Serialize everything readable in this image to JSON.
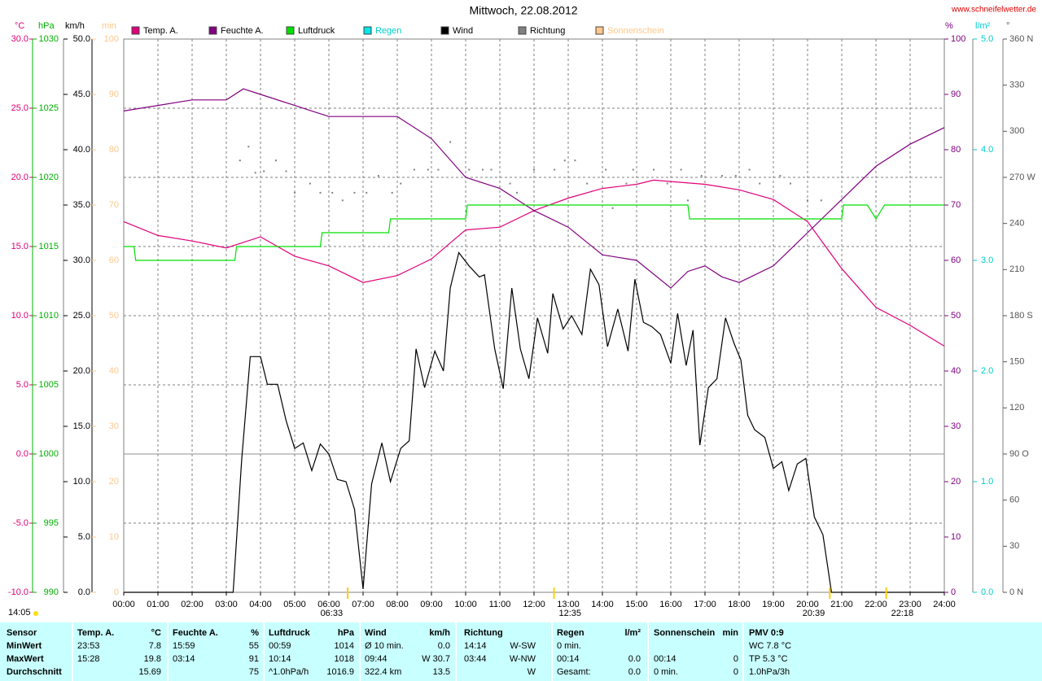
{
  "chart_data": {
    "type": "line",
    "title": "Mittwoch, 22.08.2012",
    "source": "www.schneifelwetter.de",
    "footer_time": "14:05",
    "annotations": [
      "06:33",
      "12:35",
      "20:39",
      "22:18"
    ],
    "grid": true,
    "xlim": [
      0,
      24
    ],
    "xticks": [
      {
        "value": 0,
        "label": "00:00"
      },
      {
        "value": 1,
        "label": "01:00"
      },
      {
        "value": 2,
        "label": "02:00"
      },
      {
        "value": 3,
        "label": "03:00"
      },
      {
        "value": 4,
        "label": "04:00"
      },
      {
        "value": 5,
        "label": "05:00"
      },
      {
        "value": 6,
        "label": "06:00"
      },
      {
        "value": 7,
        "label": "07:00"
      },
      {
        "value": 8,
        "label": "08:00"
      },
      {
        "value": 9,
        "label": "09:00"
      },
      {
        "value": 10,
        "label": "10:00"
      },
      {
        "value": 11,
        "label": "11:00"
      },
      {
        "value": 12,
        "label": "12:00"
      },
      {
        "value": 13,
        "label": "13:00"
      },
      {
        "value": 14,
        "label": "14:00"
      },
      {
        "value": 15,
        "label": "15:00"
      },
      {
        "value": 16,
        "label": "16:00"
      },
      {
        "value": 17,
        "label": "17:00"
      },
      {
        "value": 18,
        "label": "18:00"
      },
      {
        "value": 19,
        "label": "19:00"
      },
      {
        "value": 20,
        "label": "20:00"
      },
      {
        "value": 21,
        "label": "21:00"
      },
      {
        "value": 22,
        "label": "22:00"
      },
      {
        "value": 23,
        "label": "23:00"
      },
      {
        "value": 24,
        "label": "24:00"
      }
    ],
    "y_axes": {
      "temp": {
        "label": "°C",
        "color": "#e0007a",
        "ylim": [
          -10,
          30
        ],
        "yticks": [
          {
            "value": -10,
            "label": "-10.0"
          },
          {
            "value": -5,
            "label": "-5.0"
          },
          {
            "value": 0,
            "label": "0.0"
          },
          {
            "value": 5,
            "label": "5.0"
          },
          {
            "value": 10,
            "label": "10.0"
          },
          {
            "value": 15,
            "label": "15.0"
          },
          {
            "value": 20,
            "label": "20.0"
          },
          {
            "value": 25,
            "label": "25.0"
          },
          {
            "value": 30,
            "label": "30.0"
          }
        ]
      },
      "pressure": {
        "label": "hPa",
        "color": "#00b000",
        "ylim": [
          990,
          1030
        ],
        "yticks": [
          990,
          995,
          1000,
          1005,
          1010,
          1015,
          1020,
          1025,
          1030
        ]
      },
      "wind": {
        "label": "km/h",
        "color": "#000000",
        "ylim": [
          0,
          50
        ],
        "yticks": [
          {
            "value": 0,
            "label": "0.0"
          },
          {
            "value": 5,
            "label": "5.0"
          },
          {
            "value": 10,
            "label": "10.0"
          },
          {
            "value": 15,
            "label": "15.0"
          },
          {
            "value": 20,
            "label": "20.0"
          },
          {
            "value": 25,
            "label": "25.0"
          },
          {
            "value": 30,
            "label": "30.0"
          },
          {
            "value": 35,
            "label": "35.0"
          },
          {
            "value": 40,
            "label": "40.0"
          },
          {
            "value": 45,
            "label": "45.0"
          },
          {
            "value": 50,
            "label": "50.0"
          }
        ]
      },
      "sun": {
        "label": "min",
        "color": "#ffc88a",
        "ylim": [
          0,
          100
        ],
        "yticks": [
          0,
          10,
          20,
          30,
          40,
          50,
          60,
          70,
          80,
          90,
          100
        ]
      },
      "humidity": {
        "label": "%",
        "color": "#800080",
        "ylim": [
          0,
          100
        ],
        "yticks": [
          0,
          10,
          20,
          30,
          40,
          50,
          60,
          70,
          80,
          90,
          100
        ]
      },
      "rain": {
        "label": "l/m²",
        "color": "#00cccc",
        "ylim": [
          0,
          5
        ],
        "yticks": [
          {
            "value": 0,
            "label": "0.0"
          },
          {
            "value": 1,
            "label": "1.0"
          },
          {
            "value": 2,
            "label": "2.0"
          },
          {
            "value": 3,
            "label": "3.0"
          },
          {
            "value": 4,
            "label": "4.0"
          },
          {
            "value": 5,
            "label": "5.0"
          }
        ]
      },
      "direction": {
        "label": "°",
        "color": "#555555",
        "ylim": [
          0,
          360
        ],
        "yticks": [
          {
            "value": 0,
            "label": "0 N"
          },
          30,
          60,
          {
            "value": 90,
            "label": "90 O"
          },
          120,
          150,
          {
            "value": 180,
            "label": "180 S"
          },
          210,
          240,
          {
            "value": 270,
            "label": "270 W"
          },
          300,
          330,
          {
            "value": 360,
            "label": "360 N"
          }
        ]
      }
    },
    "series": [
      {
        "name": "Temp. A.",
        "color": "#e0007a",
        "axis": "temp",
        "x": [
          0,
          1,
          2,
          3,
          4,
          5,
          6,
          7,
          8,
          9,
          10,
          11,
          12,
          13,
          14,
          15,
          15.5,
          16,
          17,
          18,
          19,
          20,
          21,
          22,
          23,
          24
        ],
        "values": [
          16.8,
          15.8,
          15.4,
          14.9,
          15.7,
          14.3,
          13.6,
          12.4,
          12.9,
          14.1,
          16.2,
          16.4,
          17.6,
          18.5,
          19.2,
          19.5,
          19.8,
          19.7,
          19.5,
          19.1,
          18.4,
          16.8,
          13.4,
          10.6,
          9.3,
          7.8
        ]
      },
      {
        "name": "Feuchte A.",
        "color": "#800080",
        "axis": "humidity",
        "x": [
          0,
          1,
          2,
          3,
          3.5,
          4,
          5,
          6,
          7,
          8,
          8.5,
          9,
          10,
          11,
          12,
          13,
          14,
          15,
          16,
          16.5,
          17,
          17.5,
          18,
          19,
          19.5,
          20,
          21,
          22,
          23,
          24
        ],
        "values": [
          87,
          88,
          89,
          89,
          91,
          90,
          88,
          86,
          86,
          86,
          84,
          82,
          75,
          73,
          69,
          66,
          61,
          60,
          55,
          58,
          59,
          57,
          56,
          59,
          62,
          65,
          71,
          77,
          81,
          84
        ]
      },
      {
        "name": "Luftdruck",
        "color": "#00e000",
        "axis": "pressure",
        "x": [
          0,
          0.3,
          0.35,
          3.25,
          3.3,
          5.75,
          5.8,
          7.75,
          7.8,
          10,
          10.05,
          16.5,
          16.55,
          21,
          21.05,
          21.75,
          22,
          22.25,
          24
        ],
        "values": [
          1015,
          1015,
          1014,
          1014,
          1015,
          1015,
          1016,
          1016,
          1017,
          1017,
          1018,
          1018,
          1017,
          1017,
          1018,
          1018,
          1017,
          1018,
          1018
        ]
      },
      {
        "name": "Regen",
        "color": "#00e8e8",
        "axis": "rain"
      },
      {
        "name": "Wind",
        "color": "#000000",
        "axis": "wind",
        "x": [
          0,
          3.2,
          3.45,
          3.7,
          4.0,
          4.2,
          4.5,
          4.75,
          5.0,
          5.25,
          5.5,
          5.75,
          6.0,
          6.25,
          6.5,
          6.75,
          7.0,
          7.25,
          7.55,
          7.8,
          8.1,
          8.35,
          8.55,
          8.8,
          9.1,
          9.35,
          9.55,
          9.8,
          10.1,
          10.4,
          10.55,
          10.85,
          11.1,
          11.35,
          11.6,
          11.85,
          12.1,
          12.4,
          12.55,
          12.85,
          13.1,
          13.4,
          13.65,
          13.9,
          14.15,
          14.45,
          14.75,
          14.95,
          15.2,
          15.45,
          15.7,
          16.0,
          16.2,
          16.45,
          16.65,
          16.85,
          17.1,
          17.35,
          17.6,
          17.85,
          18.05,
          18.25,
          18.45,
          18.75,
          19.0,
          19.25,
          19.45,
          19.7,
          19.95,
          20.2,
          20.45,
          20.7,
          24
        ],
        "values": [
          0,
          0,
          12,
          21.3,
          21.3,
          18.8,
          18.8,
          15.5,
          13,
          13.5,
          11,
          13.4,
          12.5,
          10.2,
          10,
          7.5,
          0.3,
          9.8,
          13.5,
          10,
          13,
          13.7,
          22,
          18.5,
          21.8,
          20,
          27.5,
          30.7,
          29.5,
          28.5,
          28.7,
          22,
          18.4,
          27.5,
          22,
          19.3,
          24.8,
          21.6,
          27,
          23.8,
          25,
          23.3,
          29.2,
          27.8,
          22.2,
          25.6,
          21.8,
          28.3,
          24.4,
          24,
          23.3,
          20.7,
          25.2,
          20.5,
          23.7,
          13.3,
          18.5,
          19.3,
          24.8,
          22.5,
          21,
          16,
          14.7,
          14,
          11.2,
          11.8,
          9.2,
          11.6,
          12.1,
          6.8,
          5.2,
          0,
          0
        ]
      },
      {
        "name": "Richtung",
        "color": "#808080",
        "axis": "direction",
        "mark": "dots",
        "x": [
          3.4,
          3.65,
          3.85,
          4.1,
          4.45,
          4.75,
          5.0,
          5.45,
          5.75,
          6.1,
          6.4,
          6.75,
          7.1,
          7.45,
          7.85,
          8.1,
          8.5,
          8.9,
          9.2,
          9.55,
          10.1,
          10.5,
          10.75,
          11.3,
          11.5,
          12.0,
          12.6,
          12.9,
          13.2,
          13.55,
          14.1,
          14.3,
          14.7,
          14.9,
          15.5,
          15.9,
          16.3,
          16.5,
          16.9,
          17.5,
          17.9,
          18.3,
          18.6,
          19.2,
          19.5,
          20.0,
          20.4
        ],
        "values": [
          281,
          290,
          273,
          274,
          281,
          274,
          260,
          266,
          260,
          260,
          255,
          260,
          260,
          271,
          260,
          266,
          275,
          275,
          275,
          293,
          275,
          275,
          275,
          266,
          260,
          275,
          275,
          281,
          281,
          266,
          275,
          250,
          266,
          275,
          275,
          266,
          275,
          255,
          271,
          271,
          271,
          275,
          266,
          271,
          266,
          255,
          255
        ]
      },
      {
        "name": "Sonnenschein",
        "color": "#ffc88a",
        "axis": "sun"
      }
    ]
  },
  "table": {
    "header": [
      {
        "left": "Sensor"
      },
      {
        "left": "Temp. A.",
        "right": "°C"
      },
      {
        "left": "Feuchte A.",
        "right": "%"
      },
      {
        "left": "Luftdruck",
        "right": "hPa"
      },
      {
        "left": "Wind",
        "right": "km/h"
      },
      {
        "left": "Richtung"
      },
      {
        "left": "Regen",
        "right": "l/m²"
      },
      {
        "left": "Sonnenschein",
        "right": "min"
      },
      {
        "left": "PMV 0:9"
      }
    ],
    "rows": [
      [
        {
          "left": "MinWert"
        },
        {
          "left": "23:53",
          "right": "7.8"
        },
        {
          "left": "15:59",
          "right": "55"
        },
        {
          "left": "00:59",
          "right": "1014"
        },
        {
          "left": "Ø 10 min.",
          "right": "0.0"
        },
        {
          "left": "14:14",
          "right": "W-SW"
        },
        {
          "left": "0 min."
        },
        {},
        {
          "left": "WC 7.8 °C"
        }
      ],
      [
        {
          "left": "MaxWert"
        },
        {
          "left": "15:28",
          "right": "19.8"
        },
        {
          "left": "03:14",
          "right": "91"
        },
        {
          "left": "10:14",
          "right": "1018"
        },
        {
          "left": "09:44",
          "right": "W 30.7"
        },
        {
          "left": "03:44",
          "right": "W-NW"
        },
        {
          "left": "00:14",
          "right": "0.0"
        },
        {
          "left": "00:14",
          "right": "0"
        },
        {
          "left": "TP 5.3 °C"
        }
      ],
      [
        {
          "left": "Durchschnitt"
        },
        {
          "right": "15.69"
        },
        {
          "right": "75"
        },
        {
          "left": "^1.0hPa/h",
          "right": "1016.9"
        },
        {
          "left": "322.4 km",
          "right": "13.5"
        },
        {
          "right": "W"
        },
        {
          "left": "Gesamt:",
          "right": "0.0"
        },
        {
          "left": "0 min.",
          "right": "0"
        },
        {
          "left": "1.0hPa/3h"
        }
      ]
    ]
  }
}
